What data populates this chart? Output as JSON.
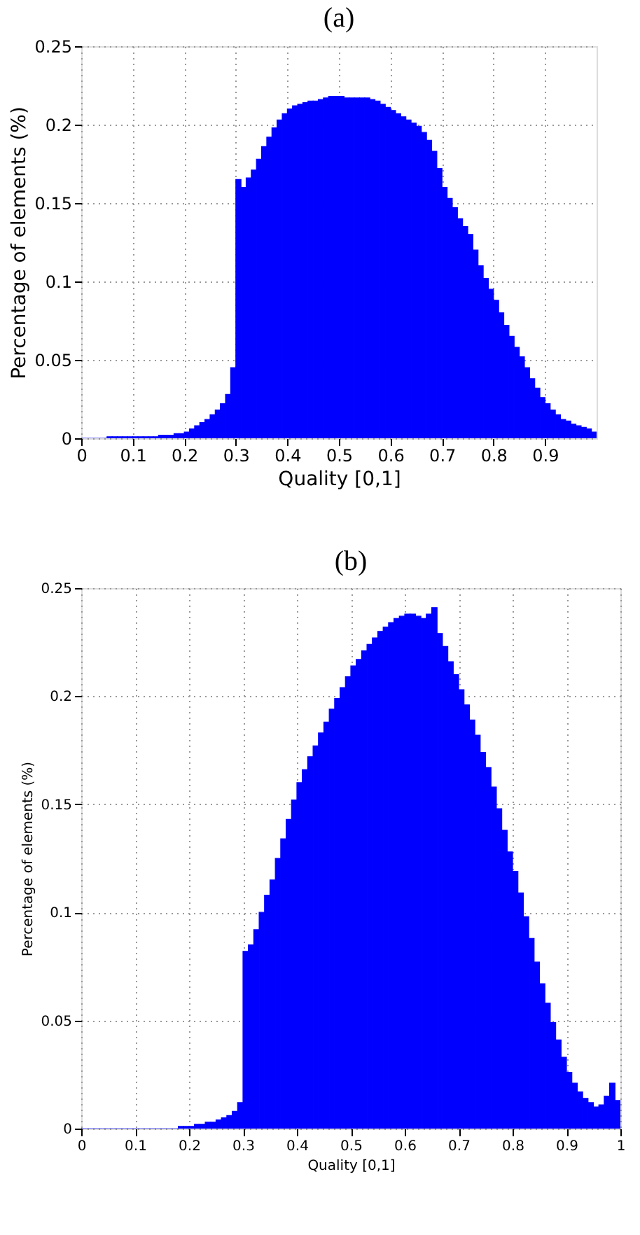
{
  "chart_data": [
    {
      "type": "histogram",
      "title": "(a)",
      "xlabel": "Quality [0,1]",
      "ylabel": "Percentage of elements (%)",
      "color": "#0000ff",
      "grid": true,
      "xlim": [
        0,
        1
      ],
      "ylim": [
        0,
        0.25
      ],
      "xticks": [
        0,
        0.1,
        0.2,
        0.3,
        0.4,
        0.5,
        0.6,
        0.7,
        0.8,
        0.9
      ],
      "yticks": [
        0,
        0.05,
        0.1,
        0.15,
        0.2,
        0.25
      ],
      "bins": [
        0,
        0.01,
        0.02,
        0.03,
        0.04,
        0.05,
        0.06,
        0.07,
        0.08,
        0.09,
        0.1,
        0.11,
        0.12,
        0.13,
        0.14,
        0.15,
        0.16,
        0.17,
        0.18,
        0.19,
        0.2,
        0.21,
        0.22,
        0.23,
        0.24,
        0.25,
        0.26,
        0.27,
        0.28,
        0.29,
        0.3,
        0.31,
        0.32,
        0.33,
        0.34,
        0.35,
        0.36,
        0.37,
        0.38,
        0.39,
        0.4,
        0.41,
        0.42,
        0.43,
        0.44,
        0.45,
        0.46,
        0.47,
        0.48,
        0.49,
        0.5,
        0.51,
        0.52,
        0.53,
        0.54,
        0.55,
        0.56,
        0.57,
        0.58,
        0.59,
        0.6,
        0.61,
        0.62,
        0.63,
        0.64,
        0.65,
        0.66,
        0.67,
        0.68,
        0.69,
        0.7,
        0.71,
        0.72,
        0.73,
        0.74,
        0.75,
        0.76,
        0.77,
        0.78,
        0.79,
        0.8,
        0.81,
        0.82,
        0.83,
        0.84,
        0.85,
        0.86,
        0.87,
        0.88,
        0.89,
        0.9,
        0.91,
        0.92,
        0.93,
        0.94,
        0.95,
        0.96,
        0.97,
        0.98,
        0.99,
        1
      ],
      "values": [
        0,
        0,
        0,
        0,
        0,
        0.001,
        0.001,
        0.001,
        0.001,
        0.001,
        0.001,
        0.001,
        0.001,
        0.001,
        0.001,
        0.002,
        0.002,
        0.002,
        0.003,
        0.003,
        0.004,
        0.006,
        0.008,
        0.01,
        0.012,
        0.015,
        0.018,
        0.022,
        0.028,
        0.045,
        0.165,
        0.16,
        0.166,
        0.171,
        0.178,
        0.186,
        0.192,
        0.198,
        0.203,
        0.207,
        0.21,
        0.212,
        0.213,
        0.214,
        0.215,
        0.215,
        0.216,
        0.217,
        0.218,
        0.218,
        0.218,
        0.217,
        0.217,
        0.217,
        0.217,
        0.217,
        0.216,
        0.215,
        0.213,
        0.211,
        0.209,
        0.207,
        0.205,
        0.203,
        0.201,
        0.199,
        0.195,
        0.19,
        0.183,
        0.172,
        0.16,
        0.153,
        0.147,
        0.14,
        0.135,
        0.13,
        0.12,
        0.11,
        0.102,
        0.095,
        0.088,
        0.08,
        0.072,
        0.065,
        0.058,
        0.052,
        0.045,
        0.038,
        0.032,
        0.026,
        0.022,
        0.018,
        0.015,
        0.012,
        0.011,
        0.009,
        0.008,
        0.007,
        0.006,
        0.004
      ]
    },
    {
      "type": "histogram",
      "title": "(b)",
      "xlabel": "Quality [0,1]",
      "ylabel": "Percentage of elements (%)",
      "color": "#0000ff",
      "grid": true,
      "xlim": [
        0,
        1
      ],
      "ylim": [
        0,
        0.25
      ],
      "xticks": [
        0,
        0.1,
        0.2,
        0.3,
        0.4,
        0.5,
        0.6,
        0.7,
        0.8,
        0.9,
        1
      ],
      "yticks": [
        0,
        0.05,
        0.1,
        0.15,
        0.2,
        0.25
      ],
      "bins": [
        0,
        0.01,
        0.02,
        0.03,
        0.04,
        0.05,
        0.06,
        0.07,
        0.08,
        0.09,
        0.1,
        0.11,
        0.12,
        0.13,
        0.14,
        0.15,
        0.16,
        0.17,
        0.18,
        0.19,
        0.2,
        0.21,
        0.22,
        0.23,
        0.24,
        0.25,
        0.26,
        0.27,
        0.28,
        0.29,
        0.3,
        0.31,
        0.32,
        0.33,
        0.34,
        0.35,
        0.36,
        0.37,
        0.38,
        0.39,
        0.4,
        0.41,
        0.42,
        0.43,
        0.44,
        0.45,
        0.46,
        0.47,
        0.48,
        0.49,
        0.5,
        0.51,
        0.52,
        0.53,
        0.54,
        0.55,
        0.56,
        0.57,
        0.58,
        0.59,
        0.6,
        0.61,
        0.62,
        0.63,
        0.64,
        0.65,
        0.66,
        0.67,
        0.68,
        0.69,
        0.7,
        0.71,
        0.72,
        0.73,
        0.74,
        0.75,
        0.76,
        0.77,
        0.78,
        0.79,
        0.8,
        0.81,
        0.82,
        0.83,
        0.84,
        0.85,
        0.86,
        0.87,
        0.88,
        0.89,
        0.9,
        0.91,
        0.92,
        0.93,
        0.94,
        0.95,
        0.96,
        0.97,
        0.98,
        0.99,
        1
      ],
      "values": [
        0,
        0,
        0,
        0,
        0,
        0,
        0,
        0,
        0,
        0,
        0,
        0,
        0,
        0,
        0,
        0,
        0,
        0,
        0.001,
        0.001,
        0.001,
        0.002,
        0.002,
        0.003,
        0.003,
        0.004,
        0.005,
        0.006,
        0.008,
        0.012,
        0.082,
        0.085,
        0.092,
        0.1,
        0.108,
        0.115,
        0.125,
        0.134,
        0.143,
        0.152,
        0.16,
        0.166,
        0.172,
        0.177,
        0.183,
        0.188,
        0.194,
        0.199,
        0.204,
        0.209,
        0.214,
        0.217,
        0.221,
        0.224,
        0.227,
        0.23,
        0.232,
        0.234,
        0.236,
        0.237,
        0.238,
        0.238,
        0.237,
        0.236,
        0.238,
        0.241,
        0.229,
        0.223,
        0.216,
        0.21,
        0.203,
        0.196,
        0.189,
        0.182,
        0.174,
        0.167,
        0.158,
        0.148,
        0.138,
        0.128,
        0.119,
        0.109,
        0.098,
        0.088,
        0.077,
        0.067,
        0.058,
        0.049,
        0.041,
        0.033,
        0.026,
        0.021,
        0.017,
        0.014,
        0.012,
        0.01,
        0.011,
        0.015,
        0.021,
        0.013
      ]
    }
  ]
}
